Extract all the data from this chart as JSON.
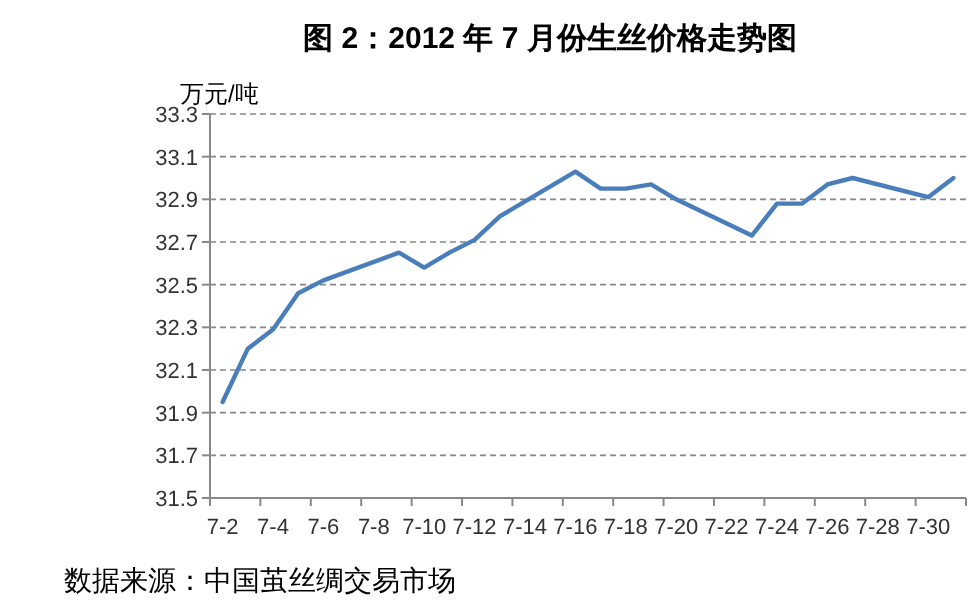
{
  "chart_data": {
    "type": "line",
    "title": "图 2：2012 年 7 月份生丝价格走势图",
    "ylabel": "万元/吨",
    "categories": [
      "7-2",
      null,
      "7-4",
      null,
      "7-6",
      null,
      "7-8",
      null,
      "7-10",
      null,
      "7-12",
      null,
      "7-14",
      null,
      "7-16",
      null,
      "7-18",
      null,
      "7-20",
      null,
      "7-22",
      null,
      "7-24",
      null,
      "7-26",
      null,
      "7-28",
      null,
      "7-30",
      null
    ],
    "series": [
      {
        "color": "#4a7ebb",
        "values": [
          31.95,
          32.2,
          32.29,
          32.46,
          32.52,
          null,
          null,
          32.65,
          32.58,
          32.65,
          32.71,
          32.82,
          null,
          null,
          33.03,
          32.95,
          32.95,
          32.97,
          32.9,
          null,
          null,
          32.73,
          32.88,
          32.88,
          32.97,
          33.0,
          null,
          null,
          32.91,
          33.0
        ]
      }
    ],
    "ylim": [
      31.5,
      33.3
    ],
    "yticks": [
      31.5,
      31.7,
      31.9,
      32.1,
      32.3,
      32.5,
      32.7,
      32.9,
      33.1,
      33.3
    ],
    "grid": "y",
    "marker": "none",
    "line_style": "solid",
    "annotations": [
      "数据来源：中国茧丝绸交易市场"
    ]
  }
}
